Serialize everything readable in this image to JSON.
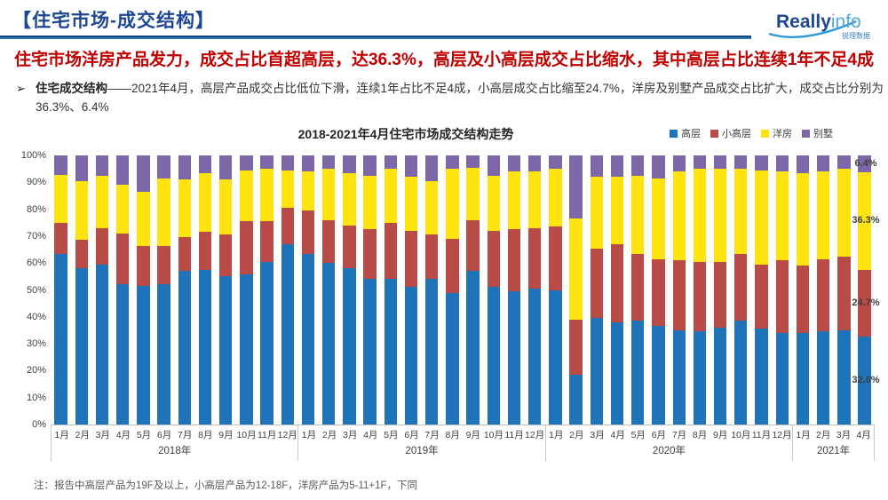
{
  "header": {
    "title": "【住宅市场-成交结构】",
    "logo_main": "Really",
    "logo_accent": "info",
    "logo_caption": "锐理数据"
  },
  "headline": "住宅市场洋房产品发力，成交占比首超高层，达36.3%，高层及小高层成交占比缩水，其中高层占比连续1年不足4成",
  "summary": {
    "bullet": "➢",
    "label": "住宅成交结构",
    "text": "——2021年4月，高层产品成交占比低位下滑，连续1年占比不足4成，小高层成交占比缩至24.7%，洋房及别墅产品成交占比扩大，成交占比分别为36.3%、6.4%"
  },
  "footnote": "注：报告中高层产品为19F及以上，小高层产品为12-18F，洋房产品为5-11+1F，下同",
  "chart_data": {
    "type": "bar",
    "subtype": "stacked-100",
    "title": "2018-2021年4月住宅市场成交结构走势",
    "grid": false,
    "legend_position": "top-right",
    "ylim": [
      0,
      100
    ],
    "y_ticks": [
      "0%",
      "10%",
      "20%",
      "30%",
      "40%",
      "50%",
      "60%",
      "70%",
      "80%",
      "90%",
      "100%"
    ],
    "year_groups": [
      {
        "label": "2018年",
        "months": 12
      },
      {
        "label": "2019年",
        "months": 12
      },
      {
        "label": "2020年",
        "months": 12
      },
      {
        "label": "2021年",
        "months": 4
      }
    ],
    "categories": [
      "1月",
      "2月",
      "3月",
      "4月",
      "5月",
      "6月",
      "7月",
      "8月",
      "9月",
      "10月",
      "11月",
      "12月",
      "1月",
      "2月",
      "3月",
      "4月",
      "5月",
      "6月",
      "7月",
      "8月",
      "9月",
      "10月",
      "11月",
      "12月",
      "1月",
      "2月",
      "3月",
      "4月",
      "5月",
      "6月",
      "7月",
      "8月",
      "9月",
      "10月",
      "11月",
      "12月",
      "1月",
      "2月",
      "3月",
      "4月"
    ],
    "series": [
      {
        "name": "高层",
        "color": "#1E73B9",
        "values": [
          63.5,
          58.0,
          59.5,
          52.0,
          51.5,
          52.0,
          57.0,
          57.5,
          55.0,
          55.7,
          60.5,
          67.0,
          63.5,
          60.0,
          58.0,
          54.0,
          54.0,
          51.0,
          54.0,
          49.0,
          57.0,
          51.0,
          49.5,
          50.5,
          50.0,
          18.5,
          39.5,
          38.0,
          38.5,
          36.5,
          35.0,
          34.5,
          36.0,
          38.5,
          35.5,
          34.0,
          34.0,
          34.5,
          35.0,
          32.6
        ]
      },
      {
        "name": "小高层",
        "color": "#B84A48",
        "values": [
          11.3,
          10.7,
          13.4,
          19.0,
          14.9,
          14.5,
          12.6,
          14.0,
          15.5,
          19.8,
          15.0,
          13.5,
          16.0,
          16.0,
          16.0,
          18.5,
          21.0,
          21.0,
          16.5,
          20.0,
          19.0,
          21.0,
          23.0,
          22.5,
          23.5,
          20.5,
          26.0,
          29.0,
          25.0,
          25.0,
          26.0,
          26.0,
          24.5,
          25.0,
          24.0,
          27.0,
          25.0,
          27.0,
          27.5,
          24.7
        ]
      },
      {
        "name": "洋房",
        "color": "#FFE30F",
        "values": [
          17.9,
          21.8,
          19.6,
          18.0,
          20.1,
          25.0,
          21.4,
          22.0,
          20.5,
          19.0,
          19.5,
          14.0,
          14.5,
          19.0,
          19.5,
          20.0,
          20.0,
          20.0,
          20.0,
          26.0,
          19.5,
          20.5,
          21.5,
          21.0,
          21.5,
          37.5,
          26.5,
          25.0,
          29.0,
          30.0,
          33.0,
          34.5,
          34.5,
          31.5,
          35.0,
          33.0,
          34.5,
          32.5,
          32.5,
          36.3
        ]
      },
      {
        "name": "别墅",
        "color": "#7C68A8",
        "values": [
          7.3,
          9.5,
          7.5,
          11.0,
          13.5,
          8.5,
          9.0,
          6.5,
          9.0,
          5.5,
          5.0,
          5.5,
          6.0,
          5.0,
          6.5,
          7.5,
          5.0,
          8.0,
          9.5,
          5.0,
          4.5,
          7.5,
          6.0,
          6.0,
          5.0,
          23.5,
          8.0,
          8.0,
          7.5,
          8.5,
          6.0,
          5.0,
          5.0,
          5.0,
          5.5,
          6.0,
          6.5,
          6.0,
          5.0,
          6.4
        ]
      }
    ],
    "last_bar_labels": [
      "32.6%",
      "24.7%",
      "36.3%",
      "6.4%"
    ]
  }
}
